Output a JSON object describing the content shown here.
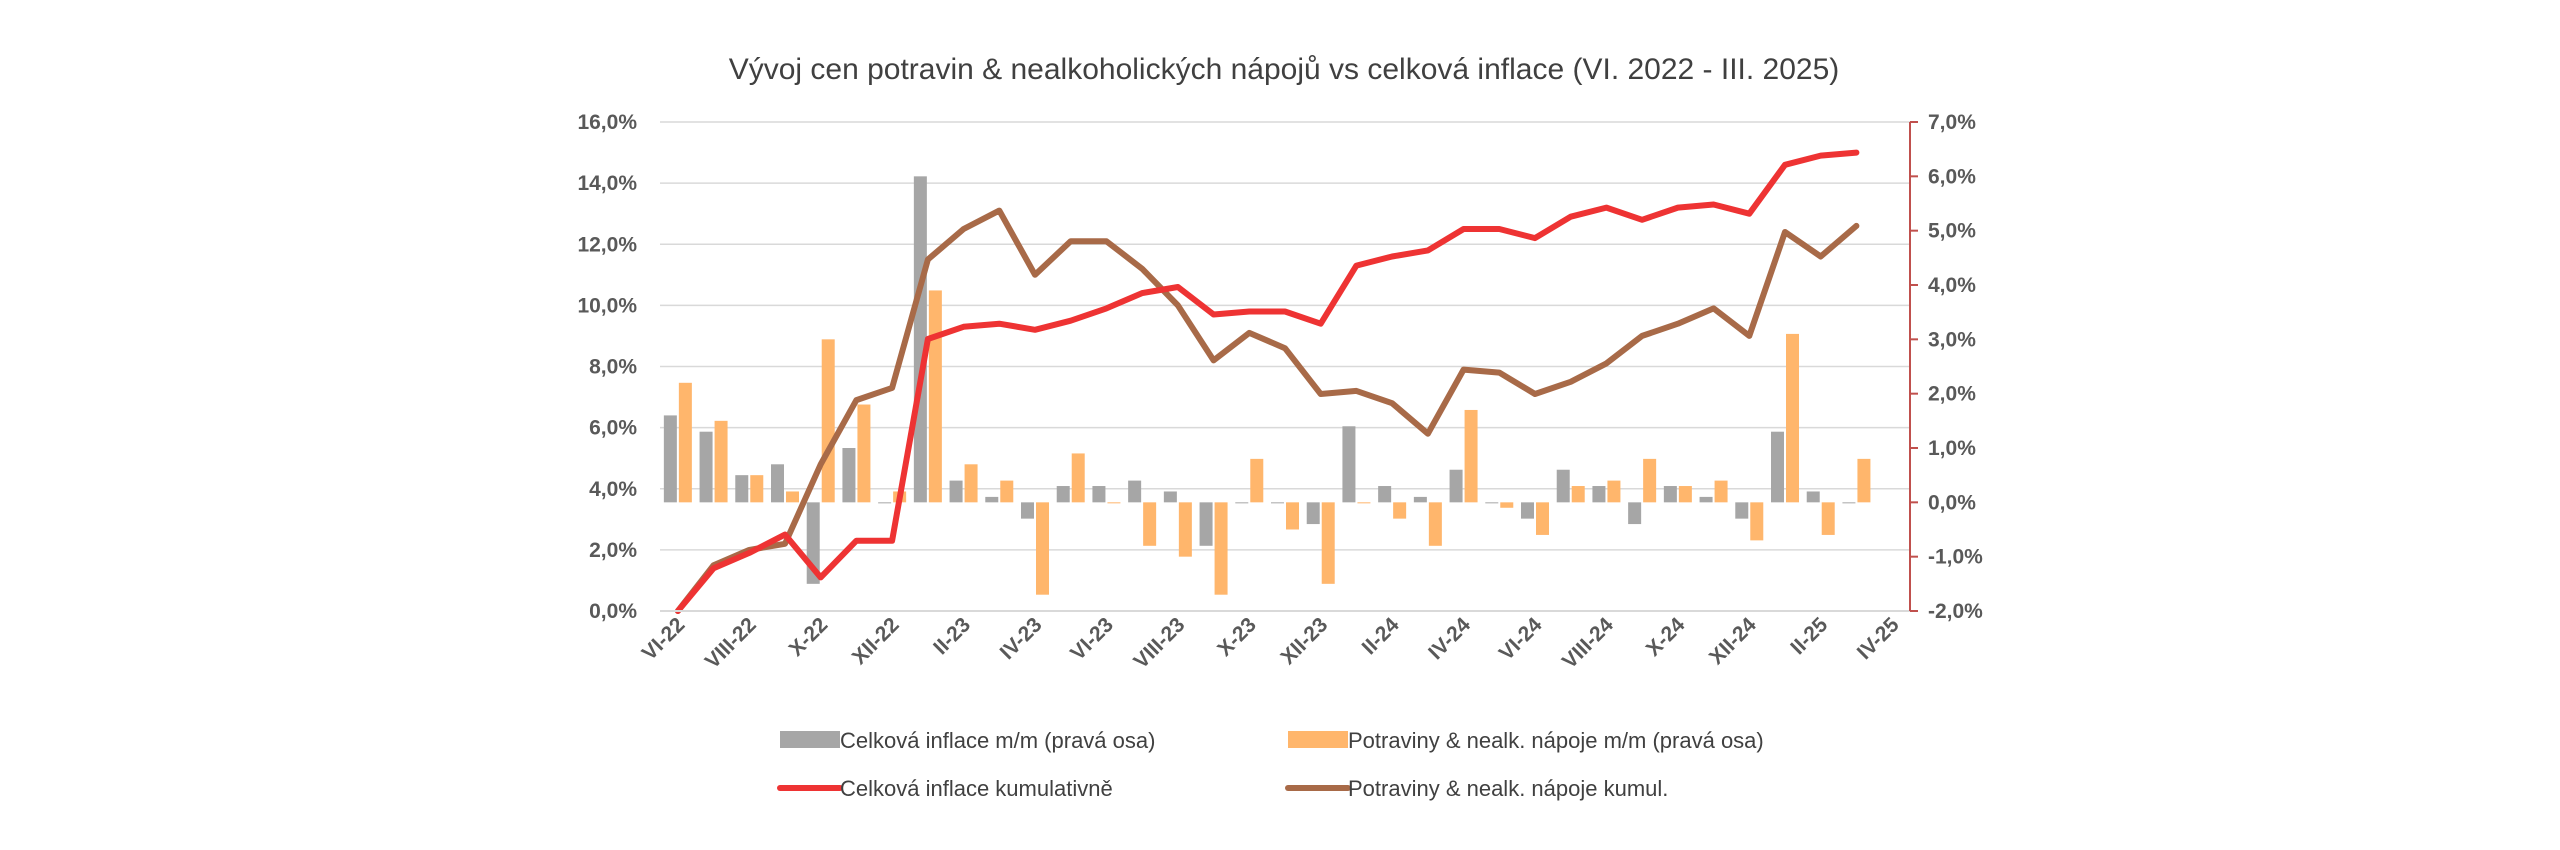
{
  "colors": {
    "total_mm": "#A6A6A6",
    "food_mm": "#FFB66C",
    "total_cum": "#EE3333",
    "food_cum": "#A86A48",
    "right_axis": "#C0504D",
    "grid": "#D9D9D9"
  },
  "chart_data": {
    "type": "bar",
    "title": "Vývoj cen potravin & nealkoholických nápojů vs celková inflace (VI. 2022 - III. 2025)",
    "legend_position": "bottom",
    "grid": true,
    "x": [
      "VI-22",
      "VII-22",
      "VIII-22",
      "IX-22",
      "X-22",
      "XI-22",
      "XII-22",
      "I-23",
      "II-23",
      "III-23",
      "IV-23",
      "V-23",
      "VI-23",
      "VII-23",
      "VIII-23",
      "IX-23",
      "X-23",
      "XI-23",
      "XII-23",
      "I-24",
      "II-24",
      "III-24",
      "IV-24",
      "V-24",
      "VI-24",
      "VII-24",
      "VIII-24",
      "IX-24",
      "X-24",
      "XI-24",
      "XII-24",
      "I-25",
      "II-25",
      "III-25",
      "IV-25"
    ],
    "x_tick_labels": [
      "VI-22",
      "VIII-22",
      "X-22",
      "XII-22",
      "II-23",
      "IV-23",
      "VI-23",
      "VIII-23",
      "X-23",
      "XII-23",
      "II-24",
      "IV-24",
      "VI-24",
      "VIII-24",
      "X-24",
      "XII-24",
      "II-25",
      "IV-25"
    ],
    "left_axis": {
      "ylim": [
        0,
        16
      ],
      "ticks": [
        "0,0%",
        "2,0%",
        "4,0%",
        "6,0%",
        "8,0%",
        "10,0%",
        "12,0%",
        "14,0%",
        "16,0%"
      ]
    },
    "right_axis": {
      "ylim": [
        -2,
        7
      ],
      "ticks": [
        "-2,0%",
        "-1,0%",
        "0,0%",
        "1,0%",
        "2,0%",
        "3,0%",
        "4,0%",
        "5,0%",
        "6,0%",
        "7,0%"
      ]
    },
    "series": [
      {
        "name": "Celková inflace m/m (pravá osa)",
        "type": "bar",
        "axis": "right",
        "values": [
          1.6,
          1.3,
          0.5,
          0.7,
          -1.5,
          1.0,
          0.0,
          6.0,
          0.4,
          0.1,
          -0.3,
          0.3,
          0.3,
          0.4,
          0.2,
          -0.8,
          0.0,
          0.0,
          -0.4,
          1.4,
          0.3,
          0.1,
          0.6,
          0.0,
          -0.3,
          0.6,
          0.3,
          -0.4,
          0.3,
          0.1,
          -0.3,
          1.3,
          0.2,
          0.0,
          null
        ]
      },
      {
        "name": "Potraviny & nealk. nápoje m/m (pravá osa)",
        "type": "bar",
        "axis": "right",
        "values": [
          2.2,
          1.5,
          0.5,
          0.2,
          3.0,
          1.8,
          0.2,
          3.9,
          0.7,
          0.4,
          -1.7,
          0.9,
          0.0,
          -0.8,
          -1.0,
          -1.7,
          0.8,
          -0.5,
          -1.5,
          0.0,
          -0.3,
          -0.8,
          1.7,
          -0.1,
          -0.6,
          0.3,
          0.4,
          0.8,
          0.3,
          0.4,
          -0.7,
          3.1,
          -0.6,
          0.8,
          null
        ]
      },
      {
        "name": "Celková inflace kumulativně",
        "type": "line",
        "axis": "left",
        "values": [
          0.0,
          1.4,
          1.9,
          2.5,
          1.1,
          2.3,
          2.3,
          8.9,
          9.3,
          9.4,
          9.2,
          9.5,
          9.9,
          10.4,
          10.6,
          9.7,
          9.8,
          9.8,
          9.4,
          11.3,
          11.6,
          11.8,
          12.5,
          12.5,
          12.2,
          12.9,
          13.2,
          12.8,
          13.2,
          13.3,
          13.0,
          14.6,
          14.9,
          15.0,
          null
        ]
      },
      {
        "name": "Potraviny & nealk. nápoje kumul.",
        "type": "line",
        "axis": "left",
        "values": [
          0.0,
          1.5,
          2.0,
          2.2,
          4.8,
          6.9,
          7.3,
          11.5,
          12.5,
          13.1,
          11.0,
          12.1,
          12.1,
          11.2,
          10.0,
          8.2,
          9.1,
          8.6,
          7.1,
          7.2,
          6.8,
          5.8,
          7.9,
          7.8,
          7.1,
          7.5,
          8.1,
          9.0,
          9.4,
          9.9,
          9.0,
          12.4,
          11.6,
          12.6,
          null
        ]
      }
    ]
  }
}
